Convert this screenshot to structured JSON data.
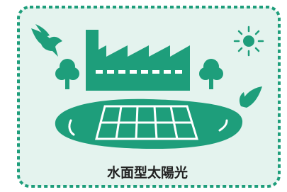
{
  "caption": "水面型太陽光"
}
